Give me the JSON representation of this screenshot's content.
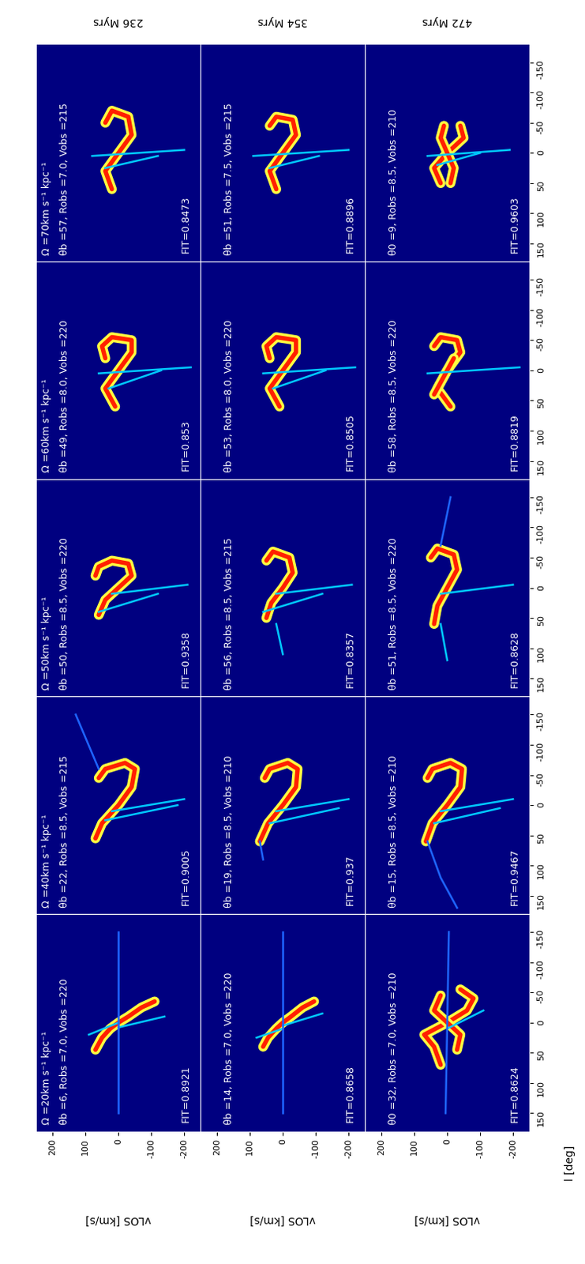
{
  "chart_data": [
    {
      "type": "density",
      "title": "Ω =20km s⁻¹ kpc⁻¹",
      "annotations": [
        "θb =6, Robs =7.0, Vobs =220",
        "FIT=0.8921"
      ],
      "ylabel": "vLOS [km/s]",
      "xlim": [
        180,
        -180
      ],
      "ylim": [
        -250,
        250
      ],
      "yticks": [
        -200,
        -100,
        0,
        100,
        200
      ],
      "series": [
        {
          "color": "#ff2000",
          "x": [
            45,
            25,
            10,
            0,
            -10,
            -25,
            -35
          ],
          "values": [
            70,
            50,
            25,
            0,
            -30,
            -70,
            -110
          ]
        },
        {
          "color": "#00c8ff",
          "x": [
            8,
            -10
          ],
          "values": [
            0,
            -140
          ]
        },
        {
          "color": "#00c8ff",
          "x": [
            0,
            20
          ],
          "values": [
            0,
            90
          ]
        },
        {
          "color": "#1e64ff",
          "x": [
            150,
            -150
          ],
          "values": [
            0,
            0
          ]
        }
      ]
    },
    {
      "type": "density",
      "annotations": [
        "θb =14, Robs =7.0, Vobs =220",
        "FIT=0.8658"
      ],
      "ylabel": "vLOS [km/s]",
      "xlim": [
        180,
        -180
      ],
      "ylim": [
        -250,
        250
      ],
      "yticks": [
        -200,
        -100,
        0,
        100,
        200
      ],
      "series": [
        {
          "color": "#ff2000",
          "x": [
            40,
            25,
            10,
            0,
            -10,
            -25,
            -35
          ],
          "values": [
            60,
            45,
            20,
            0,
            -25,
            -60,
            -95
          ]
        },
        {
          "color": "#00c8ff",
          "x": [
            5,
            -15
          ],
          "values": [
            0,
            -120
          ]
        },
        {
          "color": "#00c8ff",
          "x": [
            10,
            25
          ],
          "values": [
            0,
            80
          ]
        },
        {
          "color": "#1e64ff",
          "x": [
            150,
            -150
          ],
          "values": [
            0,
            0
          ]
        }
      ]
    },
    {
      "type": "density",
      "annotations": [
        "θ0 =32, Robs =7.0, Vobs =210",
        "FIT=0.8624"
      ],
      "ylabel": "vLOS [km/s]",
      "xlabel": "l [deg]",
      "xlim": [
        180,
        -180
      ],
      "ylim": [
        -250,
        250
      ],
      "xticks": [
        150,
        100,
        50,
        0,
        -50,
        -100,
        -150
      ],
      "yticks": [
        -200,
        -100,
        0,
        100,
        200
      ],
      "series": [
        {
          "color": "#ff2000",
          "x": [
            70,
            40,
            20,
            0,
            -20,
            -40,
            -55
          ],
          "values": [
            20,
            40,
            70,
            0,
            -60,
            -80,
            -40
          ]
        },
        {
          "color": "#ff2000",
          "x": [
            45,
            20,
            0,
            -20,
            -45
          ],
          "values": [
            -30,
            -40,
            0,
            40,
            20
          ]
        },
        {
          "color": "#00c8ff",
          "x": [
            10,
            -20
          ],
          "values": [
            0,
            -110
          ]
        },
        {
          "color": "#1e64ff",
          "x": [
            150,
            -150
          ],
          "values": [
            5,
            -5
          ]
        }
      ]
    },
    {
      "type": "density",
      "title": "Ω =40km s⁻¹ kpc⁻¹",
      "annotations": [
        "θb =22, Robs =8.5, Vobs =215",
        "FIT=0.9005"
      ],
      "xlim": [
        180,
        -180
      ],
      "ylim": [
        -250,
        250
      ],
      "series": [
        {
          "color": "#ff2000",
          "x": [
            55,
            30,
            0,
            -30,
            -60,
            -70,
            -60,
            -45
          ],
          "values": [
            70,
            50,
            0,
            -40,
            -50,
            -20,
            40,
            60
          ]
        },
        {
          "color": "#00c8ff",
          "x": [
            10,
            -10
          ],
          "values": [
            20,
            -200
          ]
        },
        {
          "color": "#00c8ff",
          "x": [
            25,
            0
          ],
          "values": [
            40,
            -180
          ]
        },
        {
          "color": "#1e64ff",
          "x": [
            -60,
            -150
          ],
          "values": [
            60,
            130
          ]
        }
      ]
    },
    {
      "type": "density",
      "annotations": [
        "θb =19, Robs =8.5, Vobs =210",
        "FIT=0.937"
      ],
      "xlim": [
        180,
        -180
      ],
      "ylim": [
        -250,
        250
      ],
      "series": [
        {
          "color": "#ff2000",
          "x": [
            60,
            30,
            0,
            -30,
            -60,
            -70,
            -60,
            -45
          ],
          "values": [
            70,
            45,
            0,
            -40,
            -45,
            -15,
            40,
            55
          ]
        },
        {
          "color": "#00c8ff",
          "x": [
            10,
            -10
          ],
          "values": [
            20,
            -200
          ]
        },
        {
          "color": "#00c8ff",
          "x": [
            30,
            5
          ],
          "values": [
            40,
            -170
          ]
        },
        {
          "color": "#1e64ff",
          "x": [
            60,
            90
          ],
          "values": [
            70,
            60
          ]
        }
      ]
    },
    {
      "type": "density",
      "annotations": [
        "θb =15, Robs =8.5, Vobs =210",
        "FIT=0.9467"
      ],
      "xlabel": "l [deg]",
      "xlim": [
        180,
        -180
      ],
      "ylim": [
        -250,
        250
      ],
      "xticks": [
        150,
        100,
        50,
        0,
        -50,
        -100,
        -150
      ],
      "series": [
        {
          "color": "#ff2000",
          "x": [
            60,
            30,
            0,
            -30,
            -60,
            -70,
            -60,
            -45
          ],
          "values": [
            65,
            45,
            0,
            -40,
            -45,
            -10,
            45,
            60
          ]
        },
        {
          "color": "#00c8ff",
          "x": [
            10,
            -10
          ],
          "values": [
            20,
            -200
          ]
        },
        {
          "color": "#00c8ff",
          "x": [
            30,
            5
          ],
          "values": [
            40,
            -160
          ]
        },
        {
          "color": "#1e64ff",
          "x": [
            60,
            120,
            170
          ],
          "values": [
            60,
            20,
            -30
          ]
        }
      ]
    },
    {
      "type": "density",
      "title": "Ω =50km s⁻¹ kpc⁻¹",
      "annotations": [
        "θb =50, Robs =8.5, Vobs =220",
        "FIT=0.9358"
      ],
      "xlim": [
        180,
        -180
      ],
      "ylim": [
        -250,
        250
      ],
      "series": [
        {
          "color": "#ff2000",
          "x": [
            45,
            20,
            0,
            -20,
            -40,
            -45,
            -35,
            -20
          ],
          "values": [
            60,
            40,
            0,
            -40,
            -30,
            20,
            60,
            70
          ]
        },
        {
          "color": "#00c8ff",
          "x": [
            10,
            -5
          ],
          "values": [
            20,
            -210
          ]
        },
        {
          "color": "#00c8ff",
          "x": [
            40,
            10
          ],
          "values": [
            60,
            -120
          ]
        }
      ]
    },
    {
      "type": "density",
      "annotations": [
        "θb =56, Robs =8.5, Vobs =215",
        "FIT=0.8357"
      ],
      "xlim": [
        180,
        -180
      ],
      "ylim": [
        -250,
        250
      ],
      "series": [
        {
          "color": "#ff2000",
          "x": [
            50,
            25,
            0,
            -25,
            -50,
            -60,
            -45
          ],
          "values": [
            50,
            35,
            0,
            -30,
            -20,
            30,
            50
          ]
        },
        {
          "color": "#00c8ff",
          "x": [
            10,
            -5
          ],
          "values": [
            20,
            -210
          ]
        },
        {
          "color": "#00c8ff",
          "x": [
            60,
            110
          ],
          "values": [
            20,
            0
          ]
        },
        {
          "color": "#00c8ff",
          "x": [
            40,
            10
          ],
          "values": [
            60,
            -120
          ]
        }
      ]
    },
    {
      "type": "density",
      "annotations": [
        "θb =51, Robs =8.5, Vobs =220",
        "FIT=0.8628"
      ],
      "xlabel": "l [deg]",
      "xlim": [
        180,
        -180
      ],
      "ylim": [
        -250,
        250
      ],
      "xticks": [
        150,
        100,
        50,
        0,
        -50,
        -100,
        -150
      ],
      "series": [
        {
          "color": "#ff2000",
          "x": [
            60,
            30,
            0,
            -30,
            -55,
            -65,
            -50
          ],
          "values": [
            40,
            30,
            0,
            -30,
            -20,
            30,
            50
          ]
        },
        {
          "color": "#00c8ff",
          "x": [
            10,
            -5
          ],
          "values": [
            20,
            -200
          ]
        },
        {
          "color": "#00c8ff",
          "x": [
            60,
            120
          ],
          "values": [
            20,
            0
          ]
        },
        {
          "color": "#1e64ff",
          "x": [
            -70,
            -150
          ],
          "values": [
            20,
            -10
          ]
        }
      ]
    },
    {
      "type": "density",
      "title": "Ω =60km s⁻¹ kpc⁻¹",
      "annotations": [
        "θb =49, Robs =8.0, Vobs =220",
        "FIT=0.853"
      ],
      "xlim": [
        180,
        -180
      ],
      "ylim": [
        -250,
        250
      ],
      "series": [
        {
          "color": "#ff2000",
          "x": [
            60,
            30,
            0,
            -30,
            -50,
            -55,
            -40,
            -20
          ],
          "values": [
            10,
            40,
            0,
            -40,
            -40,
            20,
            50,
            40
          ]
        },
        {
          "color": "#00c8ff",
          "x": [
            5,
            -5
          ],
          "values": [
            60,
            -220
          ]
        },
        {
          "color": "#00c8ff",
          "x": [
            30,
            0
          ],
          "values": [
            30,
            -130
          ]
        }
      ]
    },
    {
      "type": "density",
      "annotations": [
        "θb =53, Robs =8.0, Vobs =220",
        "FIT=0.8505"
      ],
      "xlim": [
        180,
        -180
      ],
      "ylim": [
        -250,
        250
      ],
      "series": [
        {
          "color": "#ff2000",
          "x": [
            60,
            30,
            0,
            -30,
            -50,
            -55,
            -40,
            -20
          ],
          "values": [
            10,
            40,
            0,
            -40,
            -40,
            20,
            50,
            40
          ]
        },
        {
          "color": "#00c8ff",
          "x": [
            5,
            -5
          ],
          "values": [
            60,
            -220
          ]
        },
        {
          "color": "#00c8ff",
          "x": [
            30,
            0
          ],
          "values": [
            30,
            -130
          ]
        }
      ]
    },
    {
      "type": "density",
      "annotations": [
        "θb =58, Robs =8.5, Vobs =220",
        "FIT=0.8819"
      ],
      "xlabel": "l [deg]",
      "xlim": [
        180,
        -180
      ],
      "ylim": [
        -250,
        250
      ],
      "xticks": [
        150,
        100,
        50,
        0,
        -50,
        -100,
        -150
      ],
      "series": [
        {
          "color": "#ff2000",
          "x": [
            60,
            30,
            0,
            -30,
            -50,
            -55,
            -40
          ],
          "values": [
            -10,
            30,
            0,
            -40,
            -30,
            20,
            40
          ]
        },
        {
          "color": "#ff2000",
          "x": [
            40,
            20,
            0,
            -20
          ],
          "values": [
            40,
            20,
            0,
            -20
          ]
        },
        {
          "color": "#00c8ff",
          "x": [
            5,
            -5
          ],
          "values": [
            60,
            -220
          ]
        }
      ]
    },
    {
      "type": "density",
      "title": "Ω =70km s⁻¹ kpc⁻¹",
      "annotations": [
        "θb =57, Robs =7.0, Vobs =215",
        "FIT=0.8473"
      ],
      "xlim": [
        180,
        -180
      ],
      "ylim": [
        -250,
        250
      ],
      "series": [
        {
          "color": "#ff2000",
          "x": [
            60,
            30,
            0,
            -30,
            -60,
            -70,
            -50
          ],
          "values": [
            20,
            40,
            0,
            -40,
            -30,
            20,
            40
          ]
        },
        {
          "color": "#00c8ff",
          "x": [
            5,
            -5
          ],
          "values": [
            80,
            -200
          ]
        },
        {
          "color": "#00c8ff",
          "x": [
            25,
            5
          ],
          "values": [
            40,
            -120
          ]
        }
      ]
    },
    {
      "type": "density",
      "annotations": [
        "θb =51, Robs =7.5, Vobs =215",
        "FIT=0.8896"
      ],
      "xlim": [
        180,
        -180
      ],
      "ylim": [
        -250,
        250
      ],
      "series": [
        {
          "color": "#ff2000",
          "x": [
            60,
            30,
            0,
            -30,
            -55,
            -60,
            -45
          ],
          "values": [
            20,
            40,
            0,
            -40,
            -30,
            20,
            40
          ]
        },
        {
          "color": "#00c8ff",
          "x": [
            5,
            -5
          ],
          "values": [
            90,
            -200
          ]
        },
        {
          "color": "#00c8ff",
          "x": [
            25,
            5
          ],
          "values": [
            40,
            -110
          ]
        }
      ]
    },
    {
      "type": "density",
      "annotations": [
        "θ0 =9, Robs =8.5, Vobs =210",
        "FIT=0.9603"
      ],
      "xlabel": "l [deg]",
      "xlim": [
        180,
        -180
      ],
      "ylim": [
        -250,
        250
      ],
      "xticks": [
        150,
        100,
        50,
        0,
        -50,
        -100,
        -150
      ],
      "series": [
        {
          "color": "#ff2000",
          "x": [
            50,
            25,
            0,
            -25,
            -45
          ],
          "values": [
            20,
            40,
            0,
            -50,
            -40
          ]
        },
        {
          "color": "#ff2000",
          "x": [
            50,
            25,
            0,
            -25,
            -45
          ],
          "values": [
            -10,
            -20,
            0,
            20,
            10
          ]
        },
        {
          "color": "#00c8ff",
          "x": [
            5,
            -5
          ],
          "values": [
            60,
            -190
          ]
        },
        {
          "color": "#00c8ff",
          "x": [
            20,
            0
          ],
          "values": [
            30,
            -100
          ]
        }
      ]
    }
  ],
  "row_labels": [
    "236 Myrs",
    "354 Myrs",
    "472 Myrs"
  ]
}
